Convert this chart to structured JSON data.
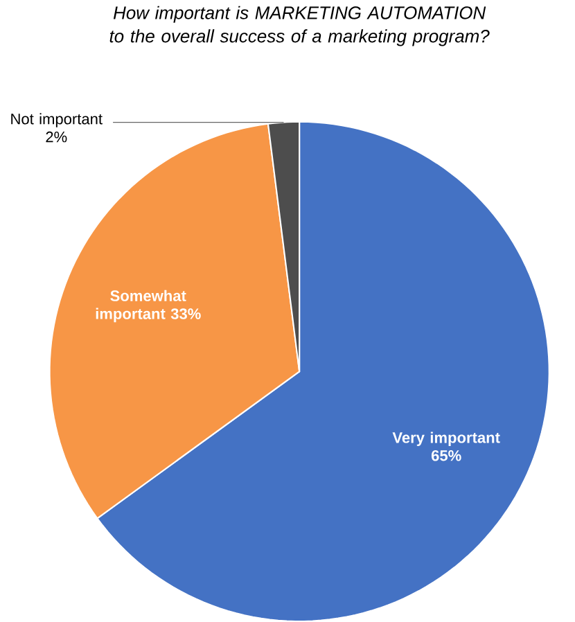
{
  "chart_data": {
    "type": "pie",
    "title": "How important is MARKETING AUTOMATION to the overall success of a marketing program?",
    "categories": [
      "Very important",
      "Somewhat important",
      "Not important"
    ],
    "values": [
      65,
      33,
      2
    ],
    "value_labels": [
      "65%",
      "33%",
      "2%"
    ],
    "colors": [
      "#4472c4",
      "#f79646",
      "#4d4d4d"
    ]
  }
}
